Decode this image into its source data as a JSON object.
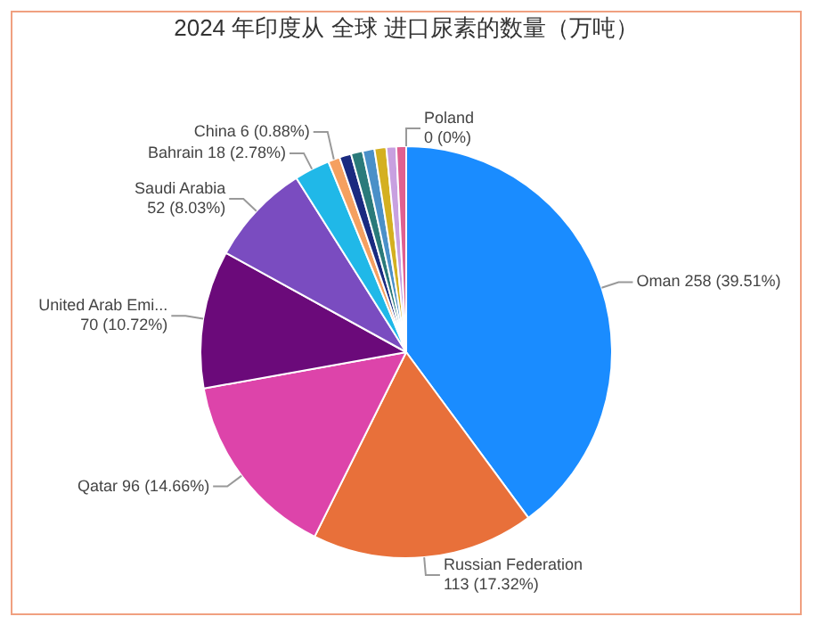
{
  "chart_data": {
    "type": "pie",
    "title": "2024 年印度从 全球 进口尿素的数量（万吨）",
    "categories": [
      "Oman",
      "Russian Federation",
      "Qatar",
      "United Arab Emi...",
      "Saudi Arabia",
      "Bahrain",
      "China",
      null,
      null,
      null,
      null,
      null,
      null,
      "Poland"
    ],
    "values": [
      258,
      113,
      96,
      70,
      52,
      18,
      6,
      6,
      6,
      6,
      6,
      5,
      5,
      0
    ],
    "colors": [
      "#1a8cff",
      "#e8703a",
      "#dd44aa",
      "#6b0a7a",
      "#7a4cc0",
      "#20b8e8",
      "#f5a060",
      "#1a2a80",
      "#2a7a7a",
      "#4a90c8",
      "#d4b020",
      "#c8a0e0",
      "#e06090",
      "#a04040"
    ],
    "value_labels": [
      "258 (39.51%)",
      "113 (17.32%)",
      "96 (14.66%)",
      "70 (10.72%)",
      "52 (8.03%)",
      "18 (2.78%)",
      "6 (0.88%)",
      null,
      null,
      null,
      null,
      null,
      null,
      "0 (0%)"
    ],
    "legend": false
  }
}
